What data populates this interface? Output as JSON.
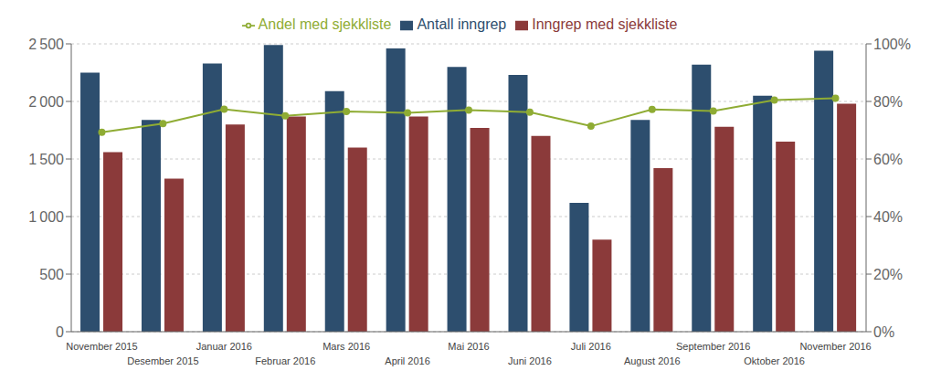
{
  "chart_data": {
    "type": "bar",
    "categories": [
      "November 2015",
      "Desember 2015",
      "Januar 2016",
      "Februar 2016",
      "Mars 2016",
      "April 2016",
      "Mai 2016",
      "Juni 2016",
      "Juli 2016",
      "August 2016",
      "September 2016",
      "Oktober 2016",
      "November 2016"
    ],
    "series": [
      {
        "name": "Antall inngrep",
        "type": "bar",
        "color": "#2d4e6e",
        "values": [
          2250,
          1840,
          2330,
          2490,
          2090,
          2460,
          2300,
          2230,
          1120,
          1840,
          2320,
          2050,
          2440
        ]
      },
      {
        "name": "Inngrep med sjekkliste",
        "type": "bar",
        "color": "#8b3a3a",
        "values": [
          1560,
          1330,
          1800,
          1870,
          1600,
          1870,
          1770,
          1700,
          800,
          1420,
          1780,
          1650,
          1980
        ]
      },
      {
        "name": "Andel med sjekkliste",
        "type": "line",
        "axis": "y2",
        "color": "#8fac34",
        "marker": "circle",
        "values": [
          0.693,
          0.723,
          0.773,
          0.75,
          0.765,
          0.76,
          0.77,
          0.763,
          0.714,
          0.772,
          0.767,
          0.805,
          0.811
        ]
      }
    ],
    "ylim": [
      0,
      2500
    ],
    "yticks": [
      0,
      500,
      {
        "value": 1000,
        "label": "1 000"
      },
      {
        "value": 1500,
        "label": "1 500"
      },
      {
        "value": 2000,
        "label": "2 000"
      },
      {
        "value": 2500,
        "label": "2 500"
      }
    ],
    "y2lim": [
      0,
      1.0
    ],
    "y2ticks": [
      {
        "value": 0.0,
        "label": "0%"
      },
      {
        "value": 0.2,
        "label": "20%"
      },
      {
        "value": 0.4,
        "label": "40%"
      },
      {
        "value": 0.6,
        "label": "60%"
      },
      {
        "value": 0.8,
        "label": "80%"
      },
      {
        "value": 1.0,
        "label": "100%"
      }
    ],
    "grid": true,
    "legend": "top"
  }
}
